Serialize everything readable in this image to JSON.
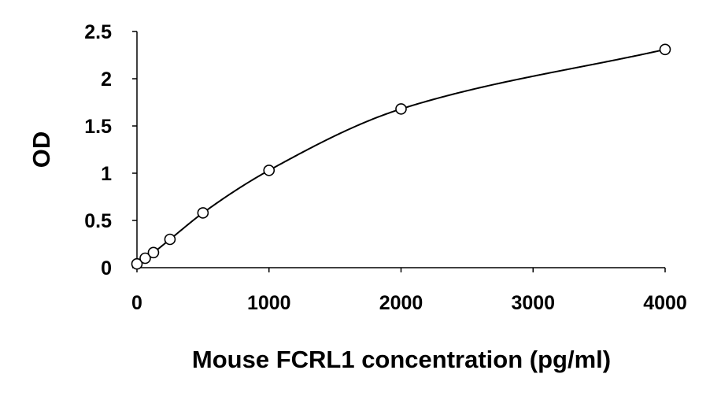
{
  "chart_data": {
    "type": "scatter",
    "title": "",
    "xlabel": "Mouse FCRL1 concentration (pg/ml)",
    "ylabel": "OD",
    "xlim": [
      0,
      4000
    ],
    "ylim": [
      0,
      2.5
    ],
    "x_ticks": [
      "0",
      "1000",
      "2000",
      "3000",
      "4000"
    ],
    "y_ticks": [
      "0",
      "0.5",
      "1",
      "1.5",
      "2",
      "2.5"
    ],
    "grid": false,
    "legend": "none",
    "series": [
      {
        "points": [
          {
            "x": 0,
            "y": 0.04
          },
          {
            "x": 62.5,
            "y": 0.1
          },
          {
            "x": 125,
            "y": 0.16
          },
          {
            "x": 250,
            "y": 0.3
          },
          {
            "x": 500,
            "y": 0.58
          },
          {
            "x": 1000,
            "y": 1.03
          },
          {
            "x": 2000,
            "y": 1.68
          },
          {
            "x": 4000,
            "y": 2.31
          }
        ],
        "marker": "open-circle",
        "trendline": "smooth-fit"
      }
    ],
    "colors": {
      "line": "#000000",
      "marker_fill": "#ffffff",
      "axis": "#000000"
    }
  }
}
